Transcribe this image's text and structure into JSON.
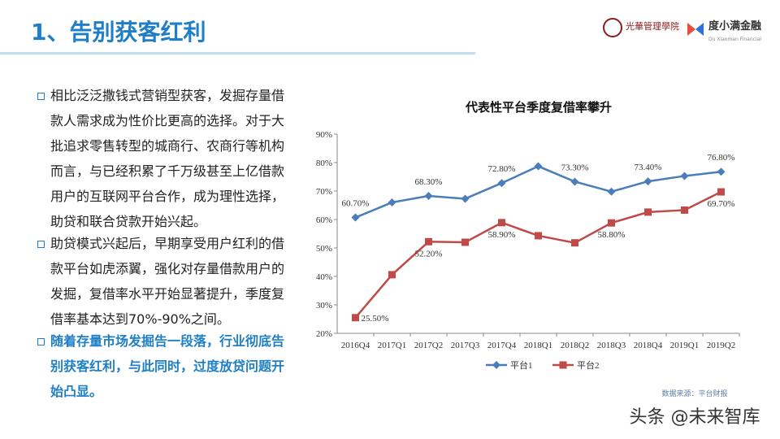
{
  "header": {
    "title": "1、告别获客红利",
    "logo_left": "光華管理學院",
    "logo_right": "度小满金融",
    "logo_right_sub": "Du Xiaoman Financial"
  },
  "bullets": [
    "相比泛泛撒钱式营销型获客，发掘存量借款人需求成为性价比更高的选择。对于大批追求零售转型的城商行、农商行等机构而言，与已经积累了千万级甚至上亿借款用户的互联网平台合作，成为理性选择，助贷和联合贷款开始兴起。",
    "助贷模式兴起后，早期享受用户红利的借款平台如虎添翼，强化对存量借款用户的发掘，复借率水平开始显著提升，季度复借率基本达到70%-90%之间。",
    "随着存量市场发掘告一段落，行业彻底告别获客红利，与此同时，过度放贷问题开始凸显。"
  ],
  "chart_data": {
    "type": "line",
    "title": "代表性平台季度复借率攀升",
    "categories": [
      "2016Q4",
      "2017Q1",
      "2017Q2",
      "2017Q3",
      "2017Q4",
      "2018Q1",
      "2018Q2",
      "2018Q3",
      "2018Q4",
      "2019Q1",
      "2019Q2"
    ],
    "series": [
      {
        "name": "平台1",
        "color": "#4a7ebb",
        "marker": "diamond",
        "values": [
          60.7,
          66,
          68.3,
          67.3,
          72.8,
          78.7,
          73.3,
          69.8,
          73.4,
          75.3,
          76.8
        ],
        "value_labels": [
          "60.70%",
          null,
          "68.30%",
          null,
          "72.80%",
          null,
          "73.30%",
          null,
          "73.40%",
          null,
          "76.80%"
        ]
      },
      {
        "name": "平台2",
        "color": "#be4b48",
        "marker": "square",
        "values": [
          25.5,
          40.6,
          52.2,
          52,
          58.9,
          54.3,
          51.8,
          58.8,
          62.6,
          63.3,
          69.7
        ],
        "value_labels": [
          "25.50%",
          null,
          "52.20%",
          null,
          "58.90%",
          null,
          null,
          "58.80%",
          null,
          null,
          "69.70%"
        ]
      }
    ],
    "ylim": [
      20,
      90
    ],
    "yticks": [
      {
        "value": 20,
        "label": "20%"
      },
      {
        "value": 30,
        "label": "30%"
      },
      {
        "value": 40,
        "label": "40%"
      },
      {
        "value": 50,
        "label": "50%"
      },
      {
        "value": 60,
        "label": "60%"
      },
      {
        "value": 70,
        "label": "70%"
      },
      {
        "value": 80,
        "label": "80%"
      },
      {
        "value": 90,
        "label": "90%"
      }
    ],
    "legend": "bottom",
    "source": "数据来源：平台财报"
  },
  "watermark": "头条 @未来智库"
}
